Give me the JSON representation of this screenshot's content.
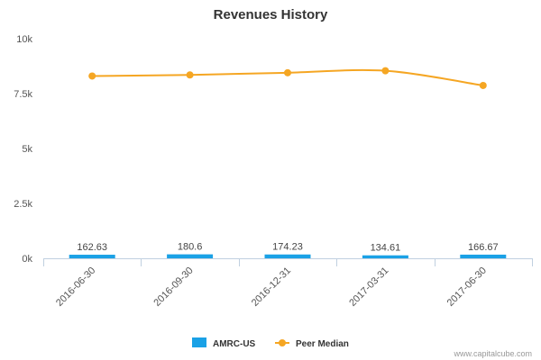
{
  "chart_data": {
    "type": "bar",
    "title": "Revenues History",
    "categories": [
      "2016-06-30",
      "2016-09-30",
      "2016-12-31",
      "2017-03-31",
      "2017-06-30"
    ],
    "ylim": [
      0,
      10000
    ],
    "yticks": [
      {
        "value": 0,
        "label": "0k"
      },
      {
        "value": 2500,
        "label": "2.5k"
      },
      {
        "value": 5000,
        "label": "5k"
      },
      {
        "value": 7500,
        "label": "7.5k"
      },
      {
        "value": 10000,
        "label": "10k"
      }
    ],
    "series": [
      {
        "name": "AMRC-US",
        "type": "bar",
        "color": "#1aa1e6",
        "values": [
          162.63,
          180.6,
          174.23,
          134.61,
          166.67
        ],
        "labels": [
          "162.63",
          "180.6",
          "174.23",
          "134.61",
          "166.67"
        ]
      },
      {
        "name": "Peer Median",
        "type": "line",
        "color": "#f5a623",
        "values": [
          8300,
          8350,
          8450,
          8540,
          7870
        ]
      }
    ],
    "legend_position": "bottom-center",
    "grid": false
  },
  "credit": "www.capitalcube.com"
}
